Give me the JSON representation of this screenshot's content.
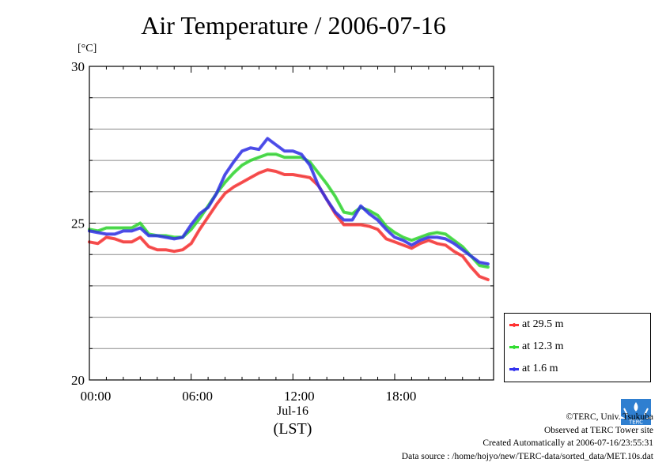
{
  "title": "Air Temperature / 2006-07-16",
  "unit_label": "[°C]",
  "x_date_label": "Jul-16",
  "x_axis_title": "(LST)",
  "credits": [
    "©TERC, Univ. Tsukuba",
    "Observed at TERC Tower site",
    "Created Automatically at 2006-07-16/23:55:31",
    "Data source : /home/hojyo/new/TERC-data/sorted_data/MET.10s.dat"
  ],
  "logo_text": "TERC",
  "chart_data": {
    "type": "line",
    "title": "Air Temperature / 2006-07-16",
    "ylabel": "[°C]",
    "xlabel": "(LST)",
    "xlim": [
      0,
      23.83
    ],
    "ylim": [
      20,
      30
    ],
    "yticks": [
      20,
      25,
      30
    ],
    "ytick_labels": [
      "20",
      "25",
      "30"
    ],
    "xticks": [
      0,
      6,
      12,
      18
    ],
    "xtick_labels": [
      "00:00",
      "06:00",
      "12:00",
      "18:00"
    ],
    "grid": true,
    "legend_position": "right-bottom",
    "series": [
      {
        "name": "at 29.5 m",
        "color": "#ff3333",
        "x": [
          0,
          0.5,
          1,
          1.5,
          2,
          2.5,
          3,
          3.5,
          4,
          4.5,
          5,
          5.5,
          6,
          6.5,
          7,
          7.5,
          8,
          8.5,
          9,
          9.5,
          10,
          10.5,
          11,
          11.5,
          12,
          12.5,
          13,
          13.5,
          14,
          14.5,
          15,
          15.5,
          16,
          16.5,
          17,
          17.5,
          18,
          18.5,
          19,
          19.5,
          20,
          20.5,
          21,
          21.5,
          22,
          22.5,
          23,
          23.5
        ],
        "values": [
          24.4,
          24.35,
          24.55,
          24.5,
          24.4,
          24.4,
          24.55,
          24.25,
          24.15,
          24.15,
          24.1,
          24.15,
          24.35,
          24.8,
          25.2,
          25.6,
          25.95,
          26.15,
          26.3,
          26.45,
          26.6,
          26.7,
          26.65,
          26.55,
          26.55,
          26.5,
          26.45,
          26.2,
          25.75,
          25.3,
          24.95,
          24.95,
          24.95,
          24.9,
          24.8,
          24.5,
          24.4,
          24.3,
          24.2,
          24.35,
          24.45,
          24.35,
          24.3,
          24.1,
          23.95,
          23.6,
          23.3,
          23.2
        ]
      },
      {
        "name": "at 12.3 m",
        "color": "#33dd33",
        "x": [
          0,
          0.5,
          1,
          1.5,
          2,
          2.5,
          3,
          3.5,
          4,
          4.5,
          5,
          5.5,
          6,
          6.5,
          7,
          7.5,
          8,
          8.5,
          9,
          9.5,
          10,
          10.5,
          11,
          11.5,
          12,
          12.5,
          13,
          13.5,
          14,
          14.5,
          15,
          15.5,
          16,
          16.5,
          17,
          17.5,
          18,
          18.5,
          19,
          19.5,
          20,
          20.5,
          21,
          21.5,
          22,
          22.5,
          23,
          23.5
        ],
        "values": [
          24.8,
          24.75,
          24.85,
          24.85,
          24.85,
          24.85,
          25.0,
          24.65,
          24.6,
          24.6,
          24.55,
          24.55,
          24.8,
          25.15,
          25.55,
          25.95,
          26.3,
          26.6,
          26.85,
          27.0,
          27.1,
          27.2,
          27.2,
          27.1,
          27.1,
          27.1,
          26.95,
          26.6,
          26.25,
          25.85,
          25.35,
          25.3,
          25.5,
          25.4,
          25.25,
          24.9,
          24.7,
          24.55,
          24.45,
          24.55,
          24.65,
          24.7,
          24.65,
          24.45,
          24.25,
          23.95,
          23.65,
          23.6
        ]
      },
      {
        "name": "at 1.6 m",
        "color": "#3333ee",
        "x": [
          0,
          0.5,
          1,
          1.5,
          2,
          2.5,
          3,
          3.5,
          4,
          4.5,
          5,
          5.5,
          6,
          6.5,
          7,
          7.5,
          8,
          8.5,
          9,
          9.5,
          10,
          10.5,
          11,
          11.5,
          12,
          12.5,
          13,
          13.5,
          14,
          14.5,
          15,
          15.5,
          16,
          16.5,
          17,
          17.5,
          18,
          18.5,
          19,
          19.5,
          20,
          20.5,
          21,
          21.5,
          22,
          22.5,
          23,
          23.5
        ],
        "values": [
          24.75,
          24.7,
          24.65,
          24.65,
          24.75,
          24.75,
          24.85,
          24.6,
          24.6,
          24.55,
          24.5,
          24.55,
          24.95,
          25.3,
          25.5,
          25.95,
          26.55,
          26.95,
          27.3,
          27.4,
          27.35,
          27.7,
          27.5,
          27.3,
          27.3,
          27.2,
          26.85,
          26.2,
          25.75,
          25.35,
          25.1,
          25.1,
          25.55,
          25.3,
          25.1,
          24.8,
          24.55,
          24.45,
          24.3,
          24.45,
          24.55,
          24.55,
          24.5,
          24.35,
          24.15,
          23.95,
          23.75,
          23.7
        ]
      }
    ]
  }
}
